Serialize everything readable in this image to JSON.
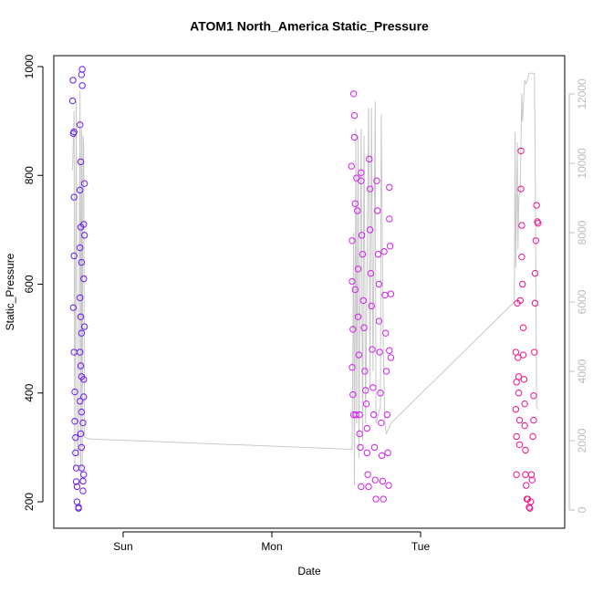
{
  "chart_data": {
    "type": "scatter",
    "title": "ATOM1 North_America Static_Pressure",
    "x_label": "Date",
    "y_label": "Static_Pressure",
    "xlim": [
      -0.466,
      2.969
    ],
    "xticks": [
      {
        "value": 0,
        "label": "Sun"
      },
      {
        "value": 1,
        "label": "Mon"
      },
      {
        "value": 2,
        "label": "Tue"
      }
    ],
    "ylim": [
      151.4,
      1020.1
    ],
    "yticks": [
      200,
      400,
      600,
      800,
      1000
    ],
    "y2lim": [
      -526,
      13105
    ],
    "y2ticks": [
      0,
      2000,
      4000,
      6000,
      8000,
      10000,
      12000
    ],
    "y2_color": "#bbbbbb",
    "series": [
      {
        "color": "#6a1bf0",
        "x": [
          -0.337,
          -0.34,
          -0.33,
          -0.335,
          -0.33,
          -0.33,
          -0.335,
          -0.33,
          -0.325,
          -0.325,
          -0.32,
          -0.32,
          -0.315,
          -0.315,
          -0.31,
          -0.31,
          -0.3,
          -0.29,
          -0.285,
          -0.29,
          -0.285,
          -0.29,
          -0.28,
          -0.29,
          -0.285,
          -0.28,
          -0.29,
          -0.285,
          -0.28,
          -0.29,
          -0.28,
          -0.285,
          -0.28,
          -0.28,
          -0.275,
          -0.28,
          -0.275,
          -0.26,
          -0.265,
          -0.26,
          -0.265,
          -0.26,
          -0.265,
          -0.265,
          -0.27,
          -0.265,
          -0.27,
          -0.27,
          -0.3
        ],
        "values": [
          975,
          937,
          880,
          877,
          760,
          652,
          557,
          475,
          402,
          348,
          318,
          290,
          262,
          237,
          228,
          200,
          190,
          893,
          825,
          773,
          705,
          667,
          640,
          575,
          540,
          510,
          475,
          450,
          430,
          385,
          365,
          325,
          300,
          262,
          995,
          985,
          965,
          785,
          710,
          690,
          610,
          522,
          425,
          393,
          345,
          250,
          238,
          220,
          188
        ]
      },
      {
        "color": "#d21fef",
        "x": [
          1.535,
          1.54,
          1.54,
          1.545,
          1.54,
          1.545,
          1.55,
          1.55,
          1.555,
          1.555,
          1.56,
          1.56,
          1.565,
          1.57,
          1.575,
          1.58,
          1.58,
          1.585,
          1.59,
          1.59,
          1.595,
          1.6,
          1.6,
          1.6,
          1.605,
          1.61,
          1.615,
          1.62,
          1.625,
          1.63,
          1.635,
          1.64,
          1.64,
          1.645,
          1.65,
          1.655,
          1.66,
          1.66,
          1.665,
          1.67,
          1.675,
          1.68,
          1.685,
          1.69,
          1.695,
          1.7,
          1.705,
          1.71,
          1.715,
          1.72,
          1.72,
          1.725,
          1.73,
          1.735,
          1.74,
          1.745,
          1.75,
          1.755,
          1.76,
          1.765,
          1.77,
          1.775,
          1.78,
          1.785,
          1.79,
          1.79,
          1.795,
          1.8,
          1.8,
          1.79
        ],
        "values": [
          817,
          680,
          605,
          517,
          447,
          397,
          360,
          950,
          910,
          870,
          748,
          590,
          360,
          795,
          735,
          628,
          540,
          470,
          360,
          325,
          300,
          228,
          805,
          790,
          690,
          655,
          570,
          520,
          440,
          405,
          380,
          335,
          290,
          250,
          228,
          830,
          775,
          700,
          620,
          560,
          480,
          410,
          360,
          300,
          240,
          205,
          790,
          735,
          655,
          600,
          532,
          475,
          400,
          345,
          285,
          238,
          205,
          660,
          580,
          510,
          440,
          360,
          290,
          230,
          778,
          720,
          670,
          582,
          465,
          478
        ]
      },
      {
        "color": "#f0128f",
        "x": [
          2.64,
          2.645,
          2.64,
          2.645,
          2.645,
          2.65,
          2.655,
          2.66,
          2.66,
          2.665,
          2.665,
          2.67,
          2.675,
          2.675,
          2.68,
          2.68,
          2.685,
          2.69,
          2.69,
          2.695,
          2.7,
          2.7,
          2.705,
          2.705,
          2.71,
          2.715,
          2.72,
          2.73,
          2.735,
          2.74,
          2.745,
          2.75,
          2.755,
          2.76,
          2.76,
          2.765,
          2.77,
          2.77,
          2.775,
          2.78,
          2.785,
          2.79
        ],
        "values": [
          475,
          420,
          370,
          320,
          250,
          565,
          465,
          430,
          400,
          350,
          305,
          570,
          845,
          775,
          708,
          650,
          600,
          520,
          470,
          425,
          380,
          340,
          295,
          250,
          230,
          205,
          205,
          190,
          188,
          200,
          250,
          240,
          320,
          350,
          395,
          475,
          565,
          620,
          680,
          745,
          715,
          712
        ]
      },
      {
        "type": "line",
        "axis": "y2",
        "color": "#c8c8c8",
        "x": [
          -0.34,
          -0.33,
          -0.325,
          -0.315,
          -0.31,
          -0.3,
          -0.29,
          -0.285,
          -0.28,
          -0.275,
          -0.27,
          -0.265,
          -0.26,
          -0.23,
          1.54,
          1.545,
          1.55,
          1.555,
          1.565,
          1.57,
          1.58,
          1.585,
          1.6,
          1.61,
          1.62,
          1.63,
          1.65,
          1.66,
          1.67,
          1.68,
          1.695,
          1.7,
          1.73,
          1.735,
          1.75,
          1.76,
          1.77,
          1.8,
          2.63,
          2.635,
          2.64,
          2.65,
          2.655,
          2.66,
          2.67,
          2.68,
          2.685,
          2.7,
          2.71,
          2.73,
          2.765,
          2.77,
          2.78,
          2.79
        ],
        "values": [
          9800,
          11500,
          1200,
          11800,
          2000,
          1500,
          12100,
          800,
          11000,
          1200,
          10800,
          10500,
          2100,
          2050,
          1750,
          5000,
          8000,
          700,
          11000,
          2500,
          10800,
          1500,
          11000,
          2000,
          10800,
          2500,
          11600,
          3500,
          11600,
          4000,
          11800,
          2500,
          3000,
          11400,
          4500,
          2500,
          2200,
          2500,
          6000,
          10900,
          7000,
          10600,
          7500,
          9000,
          9200,
          12000,
          11200,
          12400,
          12300,
          12600,
          12600,
          10500,
          3000,
          2900
        ]
      }
    ]
  }
}
